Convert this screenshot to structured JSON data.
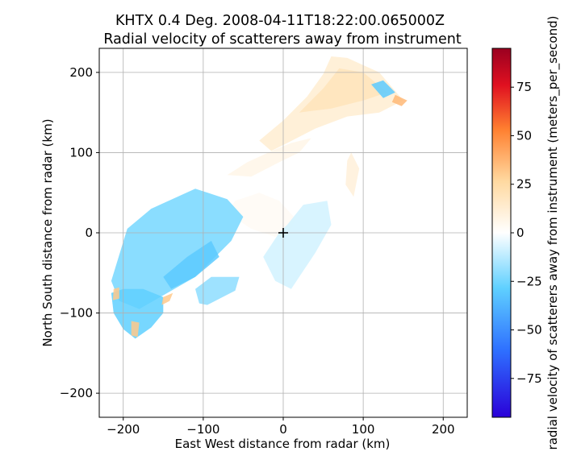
{
  "chart_data": {
    "type": "radar_ppi",
    "title_line1": "KHTX 0.4 Deg. 2008-04-11T18:22:00.065000Z",
    "title_line2": "Radial velocity of scatterers away from instrument",
    "xlabel": "East West distance from radar (km)",
    "ylabel": "North South distance from radar (km)",
    "xlim": [
      -230,
      230
    ],
    "ylim": [
      -230,
      230
    ],
    "xticks": [
      -200,
      -100,
      0,
      100,
      200
    ],
    "yticks": [
      -200,
      -100,
      0,
      100,
      200
    ],
    "xtick_labels": [
      "−200",
      "−100",
      "0",
      "100",
      "200"
    ],
    "ytick_labels": [
      "−200",
      "−100",
      "0",
      "100",
      "200"
    ],
    "grid": true,
    "radar_marker": {
      "x": 0,
      "y": 0,
      "symbol": "+"
    },
    "colorbar": {
      "label": "radial velocity of scatterers away from instrument (meters_per_second)",
      "range": [
        -95,
        95
      ],
      "ticks": [
        -75,
        -50,
        -25,
        0,
        25,
        50,
        75
      ],
      "tick_labels": [
        "−75",
        "−50",
        "−25",
        "0",
        "25",
        "50",
        "75"
      ],
      "colormap_stops": [
        "#2a00d8",
        "#2e6fff",
        "#5fd0ff",
        "#ffffff",
        "#ffd9a0",
        "#ff8030",
        "#e01020",
        "#9a0020"
      ]
    },
    "echo_regions": [
      {
        "name": "northeast-inbound-band",
        "points": [
          [
            -30,
            115
          ],
          [
            0,
            140
          ],
          [
            30,
            170
          ],
          [
            50,
            198
          ],
          [
            60,
            220
          ],
          [
            80,
            218
          ],
          [
            120,
            200
          ],
          [
            150,
            165
          ],
          [
            120,
            150
          ],
          [
            80,
            145
          ],
          [
            40,
            130
          ],
          [
            5,
            112
          ],
          [
            -15,
            102
          ]
        ],
        "velocity": 12
      },
      {
        "name": "northeast-core",
        "points": [
          [
            20,
            150
          ],
          [
            50,
            180
          ],
          [
            70,
            205
          ],
          [
            100,
            200
          ],
          [
            130,
            175
          ],
          [
            100,
            165
          ],
          [
            60,
            155
          ]
        ],
        "velocity": 18
      },
      {
        "name": "northeast-pocket",
        "points": [
          [
            110,
            185
          ],
          [
            125,
            190
          ],
          [
            140,
            175
          ],
          [
            125,
            168
          ]
        ],
        "velocity": -30
      },
      {
        "name": "northeast-edge",
        "points": [
          [
            140,
            172
          ],
          [
            155,
            165
          ],
          [
            148,
            158
          ],
          [
            136,
            163
          ]
        ],
        "velocity": 35
      },
      {
        "name": "east-thin-band",
        "points": [
          [
            85,
            100
          ],
          [
            95,
            80
          ],
          [
            88,
            45
          ],
          [
            78,
            60
          ],
          [
            80,
            90
          ]
        ],
        "velocity": 10
      },
      {
        "name": "north-feeder",
        "points": [
          [
            -70,
            72
          ],
          [
            -45,
            88
          ],
          [
            -10,
            104
          ],
          [
            10,
            112
          ],
          [
            35,
            118
          ],
          [
            20,
            100
          ],
          [
            -5,
            88
          ],
          [
            -40,
            70
          ]
        ],
        "velocity": 6
      },
      {
        "name": "central-neutral",
        "points": [
          [
            -60,
            40
          ],
          [
            -30,
            50
          ],
          [
            -5,
            40
          ],
          [
            15,
            18
          ],
          [
            10,
            5
          ],
          [
            -10,
            -5
          ],
          [
            -40,
            5
          ],
          [
            -70,
            25
          ]
        ],
        "velocity": 3
      },
      {
        "name": "southeast-speckle",
        "points": [
          [
            5,
            10
          ],
          [
            25,
            35
          ],
          [
            55,
            40
          ],
          [
            60,
            10
          ],
          [
            40,
            -25
          ],
          [
            20,
            -55
          ],
          [
            10,
            -70
          ],
          [
            -10,
            -60
          ],
          [
            -25,
            -30
          ],
          [
            -5,
            0
          ]
        ],
        "velocity": -8
      },
      {
        "name": "southwest-outbound-band",
        "points": [
          [
            -215,
            -60
          ],
          [
            -195,
            5
          ],
          [
            -165,
            30
          ],
          [
            -110,
            55
          ],
          [
            -70,
            42
          ],
          [
            -50,
            20
          ],
          [
            -65,
            -10
          ],
          [
            -110,
            -55
          ],
          [
            -145,
            -75
          ],
          [
            -180,
            -95
          ],
          [
            -205,
            -85
          ]
        ],
        "velocity": -24
      },
      {
        "name": "southwest-inner-streak",
        "points": [
          [
            -150,
            -55
          ],
          [
            -120,
            -30
          ],
          [
            -90,
            -10
          ],
          [
            -80,
            -30
          ],
          [
            -110,
            -55
          ],
          [
            -140,
            -70
          ]
        ],
        "velocity": -30
      },
      {
        "name": "south-fragment",
        "points": [
          [
            -110,
            -70
          ],
          [
            -90,
            -55
          ],
          [
            -55,
            -55
          ],
          [
            -60,
            -72
          ],
          [
            -95,
            -90
          ],
          [
            -105,
            -88
          ]
        ],
        "velocity": -20
      },
      {
        "name": "southwest-tail",
        "points": [
          [
            -215,
            -75
          ],
          [
            -200,
            -70
          ],
          [
            -175,
            -70
          ],
          [
            -150,
            -80
          ],
          [
            -150,
            -100
          ],
          [
            -165,
            -118
          ],
          [
            -185,
            -132
          ],
          [
            -200,
            -120
          ],
          [
            -212,
            -100
          ]
        ],
        "velocity": -28
      },
      {
        "name": "southwest-outbound-fringe-1",
        "points": [
          [
            -212,
            -70
          ],
          [
            -205,
            -68
          ],
          [
            -205,
            -82
          ],
          [
            -213,
            -84
          ]
        ],
        "velocity": 30
      },
      {
        "name": "southwest-outbound-fringe-2",
        "points": [
          [
            -190,
            -110
          ],
          [
            -180,
            -112
          ],
          [
            -182,
            -130
          ],
          [
            -190,
            -128
          ]
        ],
        "velocity": 30
      },
      {
        "name": "southwest-outbound-fringe-3",
        "points": [
          [
            -150,
            -80
          ],
          [
            -138,
            -75
          ],
          [
            -142,
            -85
          ],
          [
            -152,
            -90
          ]
        ],
        "velocity": 30
      }
    ]
  }
}
